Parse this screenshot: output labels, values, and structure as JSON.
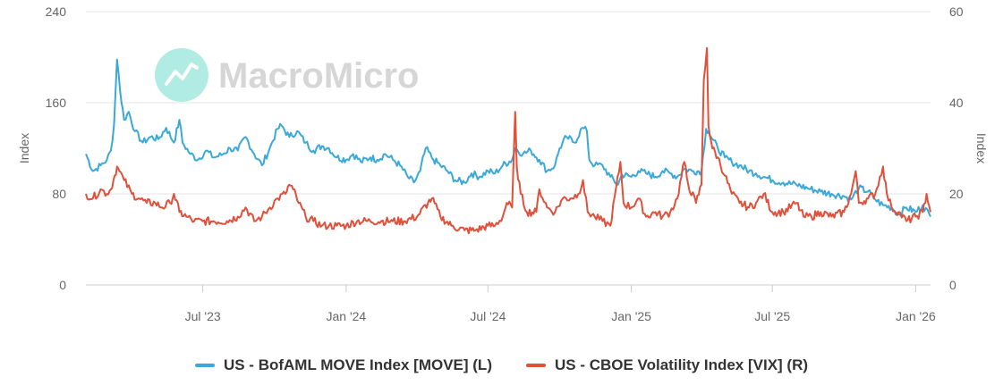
{
  "watermark": {
    "text": "MacroMicro"
  },
  "colors": {
    "move": "#3aa9d8",
    "vix": "#e0503a",
    "grid": "#e6e6e6",
    "watermark": "#a8ebe0"
  },
  "chart_data": {
    "type": "line",
    "yaxis_left": {
      "title": "Index",
      "min": 0,
      "max": 240,
      "ticks": [
        "0",
        "80",
        "160",
        "240"
      ],
      "tick_values": [
        0,
        80,
        160,
        240
      ]
    },
    "yaxis_right": {
      "title": "Index",
      "min": 0,
      "max": 60,
      "ticks": [
        "0",
        "20",
        "40",
        "60"
      ],
      "tick_values": [
        0,
        20,
        40,
        60
      ]
    },
    "xaxis": {
      "range": [
        "2023-02-01",
        "2026-01-20"
      ],
      "ticks": [
        {
          "label": "Jul '23",
          "date": "2023-07-01"
        },
        {
          "label": "Jan '24",
          "date": "2024-01-01"
        },
        {
          "label": "Jul '24",
          "date": "2024-07-01"
        },
        {
          "label": "Jan '25",
          "date": "2025-01-01"
        },
        {
          "label": "Jul '25",
          "date": "2025-07-01"
        },
        {
          "label": "Jan '26",
          "date": "2026-01-01"
        }
      ]
    },
    "series": [
      {
        "name": "US - BofAML MOVE Index [MOVE] (L)",
        "axis": "left",
        "points": [
          [
            "2023-02-01",
            115
          ],
          [
            "2023-02-10",
            100
          ],
          [
            "2023-02-20",
            105
          ],
          [
            "2023-02-28",
            110
          ],
          [
            "2023-03-05",
            118
          ],
          [
            "2023-03-09",
            140
          ],
          [
            "2023-03-13",
            198
          ],
          [
            "2023-03-15",
            185
          ],
          [
            "2023-03-17",
            170
          ],
          [
            "2023-03-22",
            145
          ],
          [
            "2023-03-28",
            152
          ],
          [
            "2023-04-05",
            135
          ],
          [
            "2023-04-15",
            125
          ],
          [
            "2023-04-25",
            130
          ],
          [
            "2023-05-05",
            128
          ],
          [
            "2023-05-15",
            138
          ],
          [
            "2023-05-25",
            125
          ],
          [
            "2023-06-01",
            145
          ],
          [
            "2023-06-05",
            125
          ],
          [
            "2023-06-15",
            115
          ],
          [
            "2023-06-25",
            110
          ],
          [
            "2023-07-05",
            118
          ],
          [
            "2023-07-15",
            112
          ],
          [
            "2023-07-25",
            114
          ],
          [
            "2023-08-05",
            120
          ],
          [
            "2023-08-15",
            118
          ],
          [
            "2023-08-25",
            130
          ],
          [
            "2023-09-05",
            115
          ],
          [
            "2023-09-15",
            105
          ],
          [
            "2023-09-25",
            120
          ],
          [
            "2023-10-05",
            137
          ],
          [
            "2023-10-10",
            140
          ],
          [
            "2023-10-20",
            130
          ],
          [
            "2023-10-30",
            135
          ],
          [
            "2023-11-10",
            125
          ],
          [
            "2023-11-20",
            118
          ],
          [
            "2023-12-01",
            122
          ],
          [
            "2023-12-10",
            120
          ],
          [
            "2023-12-20",
            112
          ],
          [
            "2024-01-01",
            110
          ],
          [
            "2024-01-10",
            115
          ],
          [
            "2024-01-20",
            108
          ],
          [
            "2024-02-01",
            112
          ],
          [
            "2024-02-10",
            110
          ],
          [
            "2024-02-20",
            115
          ],
          [
            "2024-03-01",
            110
          ],
          [
            "2024-03-10",
            105
          ],
          [
            "2024-03-20",
            95
          ],
          [
            "2024-03-28",
            90
          ],
          [
            "2024-04-05",
            100
          ],
          [
            "2024-04-12",
            120
          ],
          [
            "2024-04-22",
            110
          ],
          [
            "2024-05-01",
            105
          ],
          [
            "2024-05-10",
            100
          ],
          [
            "2024-05-20",
            92
          ],
          [
            "2024-06-01",
            90
          ],
          [
            "2024-06-10",
            98
          ],
          [
            "2024-06-20",
            95
          ],
          [
            "2024-07-01",
            100
          ],
          [
            "2024-07-10",
            98
          ],
          [
            "2024-07-20",
            105
          ],
          [
            "2024-08-01",
            110
          ],
          [
            "2024-08-05",
            120
          ],
          [
            "2024-08-15",
            115
          ],
          [
            "2024-08-25",
            118
          ],
          [
            "2024-09-05",
            110
          ],
          [
            "2024-09-15",
            100
          ],
          [
            "2024-09-25",
            105
          ],
          [
            "2024-10-01",
            120
          ],
          [
            "2024-10-10",
            130
          ],
          [
            "2024-10-20",
            125
          ],
          [
            "2024-10-30",
            138
          ],
          [
            "2024-11-05",
            135
          ],
          [
            "2024-11-08",
            110
          ],
          [
            "2024-11-15",
            105
          ],
          [
            "2024-11-25",
            105
          ],
          [
            "2024-12-05",
            95
          ],
          [
            "2024-12-15",
            88
          ],
          [
            "2024-12-20",
            97
          ],
          [
            "2025-01-01",
            95
          ],
          [
            "2025-01-10",
            100
          ],
          [
            "2025-01-20",
            98
          ],
          [
            "2025-02-01",
            95
          ],
          [
            "2025-02-10",
            100
          ],
          [
            "2025-02-20",
            98
          ],
          [
            "2025-03-01",
            95
          ],
          [
            "2025-03-10",
            102
          ],
          [
            "2025-03-20",
            100
          ],
          [
            "2025-04-01",
            100
          ],
          [
            "2025-04-07",
            137
          ],
          [
            "2025-04-10",
            135
          ],
          [
            "2025-04-15",
            128
          ],
          [
            "2025-04-22",
            120
          ],
          [
            "2025-05-01",
            112
          ],
          [
            "2025-05-10",
            108
          ],
          [
            "2025-05-20",
            105
          ],
          [
            "2025-06-01",
            100
          ],
          [
            "2025-06-10",
            98
          ],
          [
            "2025-06-20",
            95
          ],
          [
            "2025-07-01",
            92
          ],
          [
            "2025-07-15",
            90
          ],
          [
            "2025-08-01",
            88
          ],
          [
            "2025-08-15",
            85
          ],
          [
            "2025-09-01",
            82
          ],
          [
            "2025-09-15",
            80
          ],
          [
            "2025-10-01",
            78
          ],
          [
            "2025-10-10",
            75
          ],
          [
            "2025-10-20",
            85
          ],
          [
            "2025-11-01",
            82
          ],
          [
            "2025-11-10",
            75
          ],
          [
            "2025-11-20",
            70
          ],
          [
            "2025-12-01",
            68
          ],
          [
            "2025-12-10",
            62
          ],
          [
            "2025-12-20",
            68
          ],
          [
            "2026-01-01",
            64
          ],
          [
            "2026-01-10",
            70
          ],
          [
            "2026-01-20",
            60
          ]
        ]
      },
      {
        "name": "US - CBOE Volatility Index [VIX] (R)",
        "axis": "right",
        "points": [
          [
            "2023-02-01",
            20
          ],
          [
            "2023-02-10",
            19
          ],
          [
            "2023-02-20",
            21
          ],
          [
            "2023-02-28",
            20
          ],
          [
            "2023-03-05",
            21
          ],
          [
            "2023-03-10",
            24
          ],
          [
            "2023-03-13",
            26
          ],
          [
            "2023-03-16",
            25
          ],
          [
            "2023-03-22",
            23
          ],
          [
            "2023-04-01",
            20
          ],
          [
            "2023-04-10",
            19
          ],
          [
            "2023-04-20",
            18
          ],
          [
            "2023-05-01",
            18
          ],
          [
            "2023-05-10",
            17
          ],
          [
            "2023-05-20",
            18
          ],
          [
            "2023-05-25",
            20
          ],
          [
            "2023-06-01",
            16
          ],
          [
            "2023-06-10",
            15
          ],
          [
            "2023-06-20",
            14
          ],
          [
            "2023-07-01",
            14
          ],
          [
            "2023-07-15",
            14
          ],
          [
            "2023-08-01",
            14
          ],
          [
            "2023-08-15",
            15
          ],
          [
            "2023-08-25",
            17
          ],
          [
            "2023-09-05",
            14
          ],
          [
            "2023-09-15",
            15
          ],
          [
            "2023-09-25",
            17
          ],
          [
            "2023-10-05",
            19
          ],
          [
            "2023-10-15",
            20
          ],
          [
            "2023-10-20",
            22
          ],
          [
            "2023-10-25",
            21
          ],
          [
            "2023-11-01",
            18
          ],
          [
            "2023-11-10",
            15
          ],
          [
            "2023-11-20",
            14
          ],
          [
            "2023-12-01",
            13
          ],
          [
            "2023-12-10",
            13
          ],
          [
            "2023-12-20",
            13
          ],
          [
            "2024-01-01",
            13
          ],
          [
            "2024-01-15",
            14
          ],
          [
            "2024-02-01",
            14
          ],
          [
            "2024-02-15",
            14
          ],
          [
            "2024-03-01",
            14
          ],
          [
            "2024-03-15",
            14
          ],
          [
            "2024-04-01",
            15
          ],
          [
            "2024-04-15",
            18
          ],
          [
            "2024-04-20",
            19
          ],
          [
            "2024-05-01",
            15
          ],
          [
            "2024-05-15",
            13
          ],
          [
            "2024-06-01",
            12
          ],
          [
            "2024-06-15",
            12
          ],
          [
            "2024-07-01",
            13
          ],
          [
            "2024-07-10",
            13
          ],
          [
            "2024-07-20",
            15
          ],
          [
            "2024-07-25",
            18
          ],
          [
            "2024-08-01",
            17
          ],
          [
            "2024-08-05",
            38
          ],
          [
            "2024-08-07",
            26
          ],
          [
            "2024-08-12",
            20
          ],
          [
            "2024-08-20",
            16
          ],
          [
            "2024-09-01",
            16
          ],
          [
            "2024-09-05",
            21
          ],
          [
            "2024-09-15",
            17
          ],
          [
            "2024-09-25",
            16
          ],
          [
            "2024-10-05",
            19
          ],
          [
            "2024-10-15",
            19
          ],
          [
            "2024-10-25",
            20
          ],
          [
            "2024-10-31",
            23
          ],
          [
            "2024-11-06",
            16
          ],
          [
            "2024-11-15",
            15
          ],
          [
            "2024-11-25",
            14
          ],
          [
            "2024-12-05",
            13
          ],
          [
            "2024-12-18",
            27
          ],
          [
            "2024-12-22",
            18
          ],
          [
            "2025-01-01",
            17
          ],
          [
            "2025-01-10",
            19
          ],
          [
            "2025-01-20",
            15
          ],
          [
            "2025-02-01",
            16
          ],
          [
            "2025-02-10",
            15
          ],
          [
            "2025-02-20",
            16
          ],
          [
            "2025-03-01",
            19
          ],
          [
            "2025-03-10",
            27
          ],
          [
            "2025-03-15",
            22
          ],
          [
            "2025-03-25",
            18
          ],
          [
            "2025-04-01",
            22
          ],
          [
            "2025-04-04",
            45
          ],
          [
            "2025-04-08",
            52
          ],
          [
            "2025-04-10",
            35
          ],
          [
            "2025-04-15",
            30
          ],
          [
            "2025-04-22",
            28
          ],
          [
            "2025-05-01",
            24
          ],
          [
            "2025-05-10",
            20
          ],
          [
            "2025-05-20",
            18
          ],
          [
            "2025-06-01",
            17
          ],
          [
            "2025-06-10",
            18
          ],
          [
            "2025-06-20",
            20
          ],
          [
            "2025-07-01",
            16
          ],
          [
            "2025-07-15",
            16
          ],
          [
            "2025-08-01",
            18
          ],
          [
            "2025-08-10",
            15
          ],
          [
            "2025-08-20",
            15
          ],
          [
            "2025-09-01",
            16
          ],
          [
            "2025-09-15",
            15
          ],
          [
            "2025-10-01",
            16
          ],
          [
            "2025-10-10",
            20
          ],
          [
            "2025-10-16",
            25
          ],
          [
            "2025-10-20",
            18
          ],
          [
            "2025-11-01",
            19
          ],
          [
            "2025-11-10",
            20
          ],
          [
            "2025-11-20",
            26
          ],
          [
            "2025-11-25",
            20
          ],
          [
            "2025-12-01",
            17
          ],
          [
            "2025-12-10",
            16
          ],
          [
            "2025-12-20",
            14
          ],
          [
            "2026-01-01",
            15
          ],
          [
            "2026-01-10",
            16
          ],
          [
            "2026-01-15",
            20
          ],
          [
            "2026-01-20",
            16
          ]
        ]
      }
    ]
  }
}
